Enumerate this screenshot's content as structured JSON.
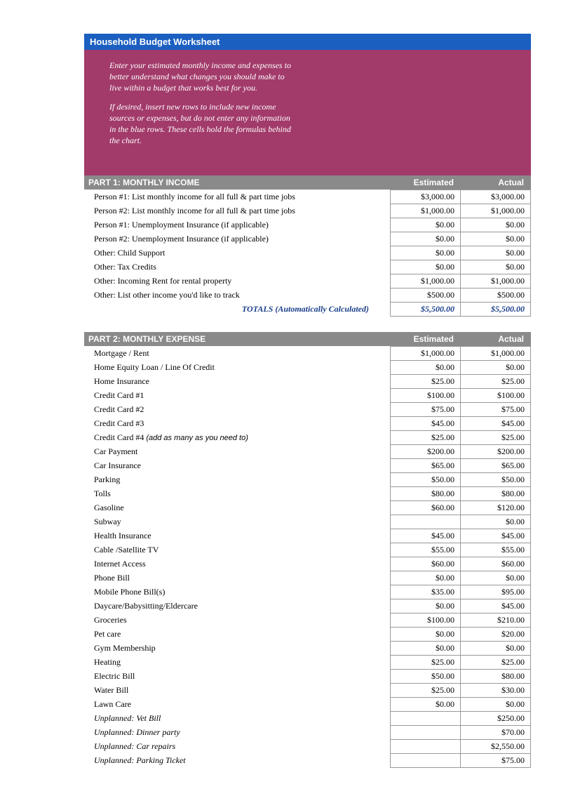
{
  "colors": {
    "title_bg": "#1b5fc1",
    "intro_bg": "#a23b6a",
    "header_bg": "#8a8a8a",
    "totals_text": "#1b3f8a",
    "cell_border": "#999999"
  },
  "title_bar": "Household Budget Worksheet",
  "intro": {
    "p1": "Enter your estimated monthly income and expenses to better understand what changes you should make to live within a budget that works best for you.",
    "p2": "If desired, insert new rows to include new income sources or expenses, but do not enter any information in the blue rows. These cells hold the formulas behind the chart."
  },
  "part1": {
    "header_label": "PART 1: MONTHLY INCOME",
    "col_estimated": "Estimated",
    "col_actual": "Actual",
    "rows": [
      {
        "label": "Person #1: List monthly income for all full & part time jobs",
        "estimated": "$3,000.00",
        "actual": "$3,000.00"
      },
      {
        "label": "Person #2: List monthly income for all full & part time jobs",
        "estimated": "$1,000.00",
        "actual": "$1,000.00"
      },
      {
        "label": "Person #1: Unemployment Insurance (if applicable)",
        "estimated": "$0.00",
        "actual": "$0.00"
      },
      {
        "label": "Person #2: Unemployment Insurance (if applicable)",
        "estimated": "$0.00",
        "actual": "$0.00"
      },
      {
        "label": "Other: Child Support",
        "estimated": "$0.00",
        "actual": "$0.00"
      },
      {
        "label": "Other: Tax Credits",
        "estimated": "$0.00",
        "actual": "$0.00"
      },
      {
        "label": "Other: Incoming Rent for rental property",
        "estimated": "$1,000.00",
        "actual": "$1,000.00"
      },
      {
        "label": "Other: List other income you'd like to track",
        "estimated": "$500.00",
        "actual": "$500.00"
      }
    ],
    "totals": {
      "label": "TOTALS (Automatically Calculated)",
      "estimated": "$5,500.00",
      "actual": "$5,500.00"
    }
  },
  "part2": {
    "header_label": "PART 2: MONTHLY EXPENSE",
    "col_estimated": "Estimated",
    "col_actual": "Actual",
    "rows": [
      {
        "label": "Mortgage / Rent",
        "estimated": "$1,000.00",
        "actual": "$1,000.00"
      },
      {
        "label": "Home Equity Loan / Line Of Credit",
        "estimated": "$0.00",
        "actual": "$0.00"
      },
      {
        "label": "Home Insurance",
        "estimated": "$25.00",
        "actual": "$25.00"
      },
      {
        "label": "Credit Card #1",
        "estimated": "$100.00",
        "actual": "$100.00"
      },
      {
        "label": "Credit Card #2",
        "estimated": "$75.00",
        "actual": "$75.00"
      },
      {
        "label": "Credit Card #3",
        "estimated": "$45.00",
        "actual": "$45.00"
      },
      {
        "label": "Credit Card #4",
        "note": "(add as many as you need to)",
        "estimated": "$25.00",
        "actual": "$25.00"
      },
      {
        "label": "Car Payment",
        "estimated": "$200.00",
        "actual": "$200.00"
      },
      {
        "label": "Car Insurance",
        "estimated": "$65.00",
        "actual": "$65.00"
      },
      {
        "label": "Parking",
        "estimated": "$50.00",
        "actual": "$50.00"
      },
      {
        "label": "Tolls",
        "estimated": "$80.00",
        "actual": "$80.00"
      },
      {
        "label": "Gasoline",
        "estimated": "$60.00",
        "actual": "$120.00"
      },
      {
        "label": "Subway",
        "estimated": "",
        "actual": "$0.00"
      },
      {
        "label": "Health Insurance",
        "estimated": "$45.00",
        "actual": "$45.00"
      },
      {
        "label": "Cable /Satellite TV",
        "estimated": "$55.00",
        "actual": "$55.00"
      },
      {
        "label": "Internet Access",
        "estimated": "$60.00",
        "actual": "$60.00"
      },
      {
        "label": "Phone Bill",
        "estimated": "$0.00",
        "actual": "$0.00"
      },
      {
        "label": "Mobile Phone Bill(s)",
        "estimated": "$35.00",
        "actual": "$95.00"
      },
      {
        "label": "Daycare/Babysitting/Eldercare",
        "estimated": "$0.00",
        "actual": "$45.00"
      },
      {
        "label": "Groceries",
        "estimated": "$100.00",
        "actual": "$210.00"
      },
      {
        "label": "Pet care",
        "estimated": "$0.00",
        "actual": "$20.00"
      },
      {
        "label": "Gym Membership",
        "estimated": "$0.00",
        "actual": "$0.00"
      },
      {
        "label": "Heating",
        "estimated": "$25.00",
        "actual": "$25.00"
      },
      {
        "label": "Electric Bill",
        "estimated": "$50.00",
        "actual": "$80.00"
      },
      {
        "label": "Water Bill",
        "estimated": "$25.00",
        "actual": "$30.00"
      },
      {
        "label": "Lawn Care",
        "estimated": "$0.00",
        "actual": "$0.00"
      },
      {
        "label": "Unplanned: Vet Bill",
        "italic": true,
        "estimated": "",
        "actual": "$250.00"
      },
      {
        "label": "Unplanned: Dinner party",
        "italic": true,
        "estimated": "",
        "actual": "$70.00"
      },
      {
        "label": "Unplanned: Car repairs",
        "italic": true,
        "estimated": "",
        "actual": "$2,550.00"
      },
      {
        "label": "Unplanned: Parking Ticket",
        "italic": true,
        "estimated": "",
        "actual": "$75.00"
      }
    ]
  }
}
